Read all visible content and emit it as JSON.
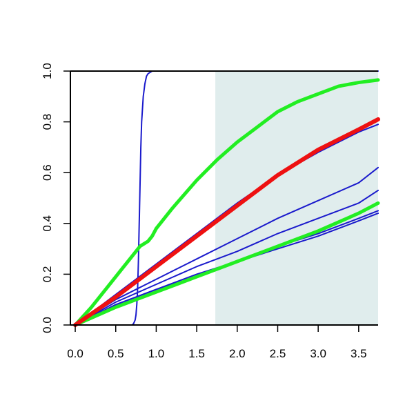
{
  "chart_data": {
    "type": "line",
    "title": "",
    "xlabel": "",
    "ylabel": "",
    "xlim": [
      -0.06,
      3.74
    ],
    "ylim": [
      0,
      1.0
    ],
    "grid": false,
    "x_ticks": [
      "0.0",
      "0.5",
      "1.0",
      "1.5",
      "2.0",
      "2.5",
      "3.0",
      "3.5"
    ],
    "y_ticks": [
      "0.0",
      "0.2",
      "0.4",
      "0.6",
      "0.8",
      "1.0"
    ],
    "shaded_region": {
      "x_from": 1.73,
      "x_to": 3.74,
      "color": "#e0eded"
    },
    "series": [
      {
        "color": "#1a1acc",
        "width": 2,
        "x": [
          0,
          0.6,
          0.7,
          0.72,
          0.74,
          0.75,
          0.76,
          0.77,
          0.78,
          0.79,
          0.8,
          0.81,
          0.82,
          0.84,
          0.86,
          0.88,
          0.9,
          0.95,
          1.0,
          3.74
        ],
        "y": [
          0.0,
          0.0,
          0.0,
          0.005,
          0.02,
          0.04,
          0.08,
          0.14,
          0.25,
          0.4,
          0.55,
          0.7,
          0.8,
          0.9,
          0.95,
          0.98,
          0.99,
          1.0,
          1.0,
          1.0
        ]
      },
      {
        "color": "#1a1acc",
        "width": 2,
        "x": [
          0,
          0.5,
          1.0,
          1.5,
          2.0,
          2.5,
          3.0,
          3.5,
          3.74
        ],
        "y": [
          0.0,
          0.12,
          0.24,
          0.36,
          0.48,
          0.59,
          0.68,
          0.76,
          0.79
        ]
      },
      {
        "color": "#1a1acc",
        "width": 2,
        "x": [
          0,
          0.5,
          1.0,
          1.5,
          2.0,
          2.5,
          3.0,
          3.5,
          3.74
        ],
        "y": [
          0.0,
          0.1,
          0.18,
          0.26,
          0.34,
          0.42,
          0.49,
          0.56,
          0.62
        ]
      },
      {
        "color": "#1a1acc",
        "width": 2,
        "x": [
          0,
          0.5,
          1.0,
          1.5,
          2.0,
          2.5,
          3.0,
          3.5,
          3.74
        ],
        "y": [
          0.0,
          0.09,
          0.16,
          0.23,
          0.29,
          0.36,
          0.42,
          0.48,
          0.53
        ]
      },
      {
        "color": "#1a1acc",
        "width": 2,
        "x": [
          0,
          0.5,
          1.0,
          1.5,
          2.0,
          2.5,
          3.0,
          3.5,
          3.74
        ],
        "y": [
          0.0,
          0.08,
          0.14,
          0.2,
          0.25,
          0.31,
          0.36,
          0.42,
          0.45
        ]
      },
      {
        "color": "#1a1acc",
        "width": 2,
        "x": [
          0,
          0.5,
          1.0,
          1.5,
          2.0,
          2.5,
          3.0,
          3.5,
          3.74
        ],
        "y": [
          0.0,
          0.08,
          0.14,
          0.19,
          0.25,
          0.3,
          0.35,
          0.41,
          0.44
        ]
      },
      {
        "color": "#22ee22",
        "width": 5,
        "x": [
          0,
          0.2,
          0.4,
          0.6,
          0.8,
          0.85,
          0.9,
          0.95,
          1.0,
          1.2,
          1.5,
          1.75,
          2.0,
          2.25,
          2.5,
          2.75,
          3.0,
          3.25,
          3.5,
          3.74
        ],
        "y": [
          0.0,
          0.07,
          0.15,
          0.23,
          0.31,
          0.32,
          0.33,
          0.35,
          0.38,
          0.46,
          0.57,
          0.65,
          0.72,
          0.78,
          0.84,
          0.88,
          0.91,
          0.94,
          0.955,
          0.965
        ]
      },
      {
        "color": "#22ee22",
        "width": 5,
        "x": [
          0,
          0.5,
          1.0,
          1.5,
          2.0,
          2.5,
          3.0,
          3.5,
          3.74
        ],
        "y": [
          0.0,
          0.07,
          0.13,
          0.19,
          0.25,
          0.31,
          0.37,
          0.44,
          0.48
        ]
      },
      {
        "color": "#ee1111",
        "width": 6,
        "x": [
          0,
          0.5,
          1.0,
          1.5,
          2.0,
          2.5,
          3.0,
          3.5,
          3.74
        ],
        "y": [
          0.0,
          0.11,
          0.23,
          0.35,
          0.47,
          0.59,
          0.69,
          0.77,
          0.81
        ]
      }
    ]
  }
}
